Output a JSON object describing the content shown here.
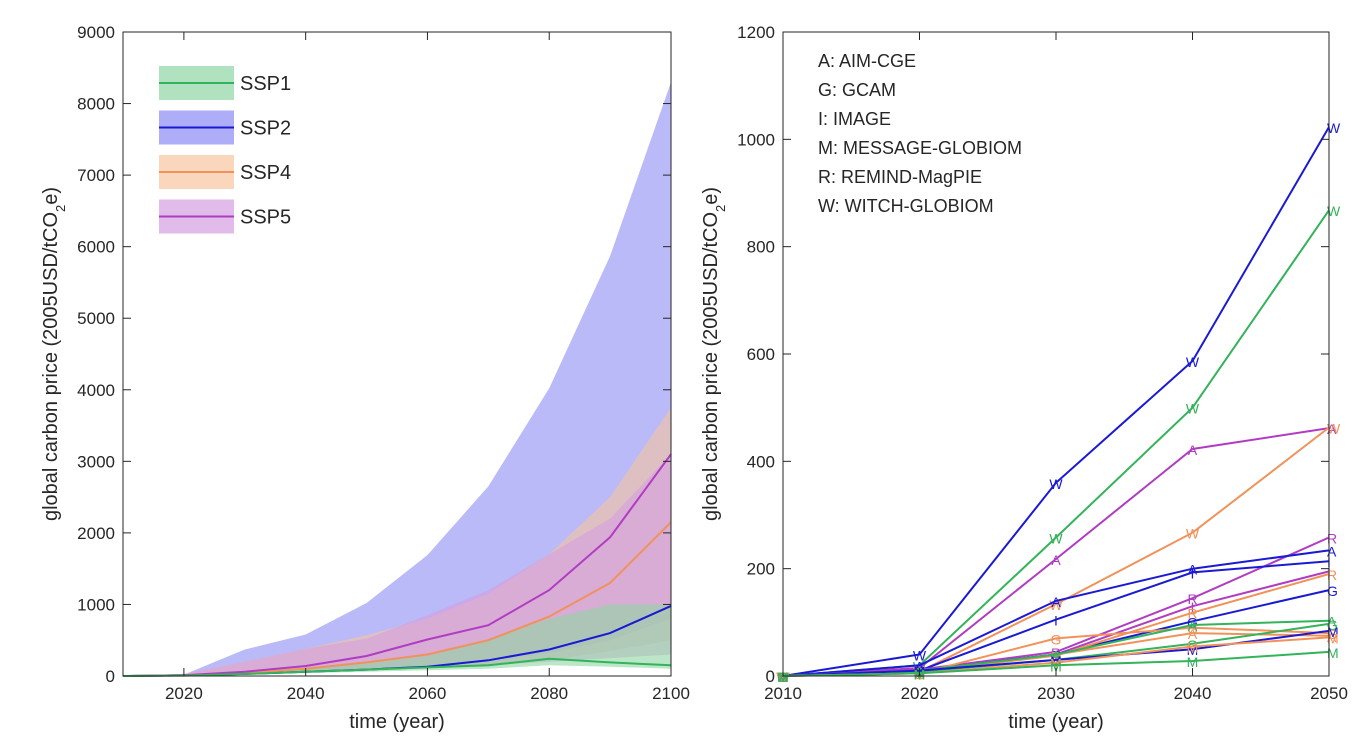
{
  "chart_data": [
    {
      "type": "area",
      "xlabel": "time (year)",
      "ylabel_main": "global carbon price (2005USD/tCO",
      "ylabel_sub": "2",
      "ylabel_end": "e)",
      "xlim": [
        2010,
        2100
      ],
      "ylim": [
        0,
        9000
      ],
      "xticks": [
        2020,
        2040,
        2060,
        2080,
        2100
      ],
      "yticks": [
        0,
        1000,
        2000,
        3000,
        4000,
        5000,
        6000,
        7000,
        8000,
        9000
      ],
      "legend_position": "top-left",
      "series": [
        {
          "name": "SSP2",
          "color": "#1a1ad4",
          "band_color": "#8c8cf5",
          "x": [
            2010,
            2020,
            2030,
            2040,
            2050,
            2060,
            2070,
            2080,
            2090,
            2100
          ],
          "median": [
            0,
            10,
            30,
            60,
            90,
            130,
            220,
            370,
            600,
            980
          ],
          "lower": [
            0,
            5,
            20,
            60,
            80,
            120,
            200,
            320,
            500,
            800
          ],
          "upper": [
            0,
            20,
            370,
            580,
            1020,
            1690,
            2650,
            4020,
            5870,
            8300
          ]
        },
        {
          "name": "SSP4",
          "color": "#f0925a",
          "band_color": "#f6c49f",
          "x": [
            2010,
            2020,
            2030,
            2040,
            2050,
            2060,
            2070,
            2080,
            2090,
            2100
          ],
          "median": [
            0,
            10,
            40,
            100,
            190,
            300,
            500,
            830,
            1300,
            2150
          ],
          "lower": [
            0,
            5,
            20,
            50,
            80,
            110,
            160,
            220,
            350,
            500
          ],
          "upper": [
            0,
            30,
            200,
            380,
            570,
            800,
            1150,
            1700,
            2500,
            3750
          ]
        },
        {
          "name": "SSP5",
          "color": "#b03cc2",
          "band_color": "#d49ee0",
          "x": [
            2010,
            2020,
            2030,
            2040,
            2050,
            2060,
            2070,
            2080,
            2090,
            2100
          ],
          "median": [
            0,
            10,
            60,
            140,
            280,
            510,
            710,
            1200,
            1940,
            3100
          ],
          "lower": [
            0,
            5,
            30,
            60,
            80,
            110,
            150,
            200,
            250,
            300
          ],
          "upper": [
            0,
            30,
            200,
            380,
            520,
            850,
            1200,
            1700,
            2200,
            3100
          ]
        },
        {
          "name": "SSP1",
          "color": "#33b35a",
          "band_color": "#8fd6a4",
          "x": [
            2010,
            2020,
            2030,
            2040,
            2050,
            2060,
            2070,
            2080,
            2090,
            2100
          ],
          "median": [
            0,
            5,
            30,
            60,
            90,
            120,
            150,
            240,
            190,
            150
          ],
          "lower": [
            0,
            2,
            15,
            40,
            60,
            80,
            100,
            150,
            130,
            100
          ],
          "upper": [
            0,
            10,
            60,
            120,
            180,
            280,
            500,
            800,
            1000,
            1000
          ]
        }
      ]
    },
    {
      "type": "line",
      "xlabel": "time (year)",
      "ylabel_main": "global carbon price (2005USD/tCO",
      "ylabel_sub": "2",
      "ylabel_end": "e)",
      "xlim": [
        2010,
        2050
      ],
      "ylim": [
        0,
        1200
      ],
      "xticks": [
        2010,
        2020,
        2030,
        2040,
        2050
      ],
      "yticks": [
        0,
        200,
        400,
        600,
        800,
        1000,
        1200
      ],
      "x": [
        2010,
        2020,
        2030,
        2040,
        2050
      ],
      "legend_position": "top-left",
      "model_legend": [
        "A: AIM-CGE",
        "G: GCAM",
        "I: IMAGE",
        "M: MESSAGE-GLOBIOM",
        "R: REMIND-MagPIE",
        "W: WITCH-GLOBIOM"
      ],
      "colors": {
        "SSP1": "#33b35a",
        "SSP2": "#1a1ad4",
        "SSP4": "#f0925a",
        "SSP5": "#b03cc2"
      },
      "series": [
        {
          "ssp": "SSP2",
          "model": "W",
          "values": [
            0,
            40,
            360,
            587,
            1023
          ]
        },
        {
          "ssp": "SSP1",
          "model": "W",
          "values": [
            0,
            20,
            258,
            500,
            868
          ]
        },
        {
          "ssp": "SSP5",
          "model": "A",
          "values": [
            0,
            15,
            218,
            423,
            462
          ]
        },
        {
          "ssp": "SSP4",
          "model": "W",
          "values": [
            0,
            8,
            134,
            267,
            463
          ]
        },
        {
          "ssp": "SSP5",
          "model": "R",
          "values": [
            0,
            12,
            45,
            145,
            258
          ]
        },
        {
          "ssp": "SSP2",
          "model": "A",
          "values": [
            0,
            20,
            140,
            200,
            234
          ]
        },
        {
          "ssp": "SSP2",
          "model": "I",
          "values": [
            0,
            10,
            105,
            193,
            214
          ]
        },
        {
          "ssp": "SSP5",
          "model": "I",
          "values": [
            0,
            12,
            40,
            130,
            195
          ]
        },
        {
          "ssp": "SSP2",
          "model": "G",
          "values": [
            0,
            10,
            40,
            102,
            160
          ]
        },
        {
          "ssp": "SSP4",
          "model": "R",
          "values": [
            0,
            8,
            38,
            118,
            190
          ]
        },
        {
          "ssp": "SSP4",
          "model": "G",
          "values": [
            0,
            5,
            70,
            90,
            80
          ]
        },
        {
          "ssp": "SSP4",
          "model": "A",
          "values": [
            0,
            5,
            40,
            80,
            75
          ]
        },
        {
          "ssp": "SSP1",
          "model": "A",
          "values": [
            0,
            10,
            40,
            95,
            103
          ]
        },
        {
          "ssp": "SSP1",
          "model": "G",
          "values": [
            0,
            8,
            30,
            60,
            97
          ]
        },
        {
          "ssp": "SSP2",
          "model": "M",
          "values": [
            0,
            10,
            30,
            50,
            84
          ]
        },
        {
          "ssp": "SSP4",
          "model": "M",
          "values": [
            0,
            5,
            25,
            55,
            72
          ]
        },
        {
          "ssp": "SSP1",
          "model": "M",
          "values": [
            0,
            5,
            20,
            28,
            45
          ]
        }
      ]
    }
  ]
}
